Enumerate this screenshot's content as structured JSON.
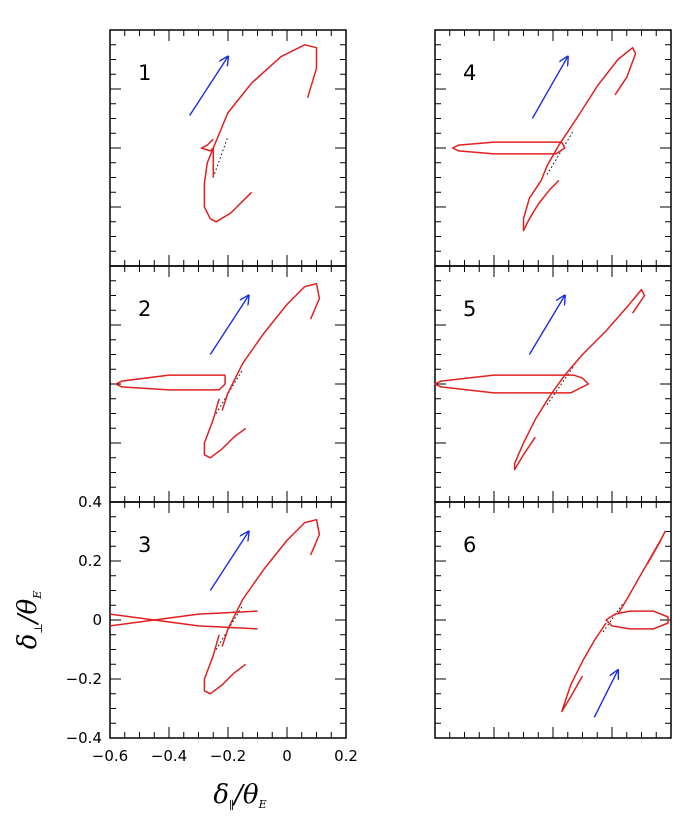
{
  "chart_data": {
    "type": "line",
    "title": "",
    "xlim": [
      -0.6,
      0.2
    ],
    "ylim": [
      -0.4,
      0.4
    ],
    "xticks": [
      "−0.6",
      "−0.4",
      "−0.2",
      "0",
      "0.2"
    ],
    "yticks": [
      "−0.4",
      "−0.2",
      "0",
      "0.2",
      "0.4"
    ],
    "xlabel": {
      "main": "δ",
      "sub": "∥",
      "divider": "/θ",
      "sub2": "E"
    },
    "ylabel": {
      "main": "δ",
      "sub": "⊥",
      "divider": "/θ",
      "sub2": "E"
    },
    "colors": {
      "curve": "#e02020",
      "arrow": "#1a2ee6",
      "chord": "#000000"
    },
    "panels": [
      {
        "label": "1",
        "arrow": [
          [
            -0.33,
            0.11
          ],
          [
            -0.2,
            0.31
          ]
        ],
        "curves": [
          [
            [
              -0.25,
              -0.1
            ],
            [
              -0.25,
              0.0
            ],
            [
              -0.2,
              0.12
            ],
            [
              -0.12,
              0.22
            ],
            [
              -0.02,
              0.31
            ],
            [
              0.06,
              0.35
            ],
            [
              0.1,
              0.34
            ],
            [
              0.1,
              0.27
            ],
            [
              0.07,
              0.17
            ]
          ],
          [
            [
              -0.25,
              0.0
            ],
            [
              -0.27,
              -0.05
            ],
            [
              -0.28,
              -0.12
            ],
            [
              -0.28,
              -0.2
            ],
            [
              -0.26,
              -0.24
            ],
            [
              -0.24,
              -0.25
            ],
            [
              -0.19,
              -0.22
            ],
            [
              -0.14,
              -0.17
            ],
            [
              -0.12,
              -0.15
            ]
          ],
          [
            [
              -0.25,
              0.03
            ],
            [
              -0.27,
              0.01
            ],
            [
              -0.29,
              0.0
            ],
            [
              -0.26,
              -0.01
            ],
            [
              -0.25,
              0.0
            ]
          ]
        ],
        "chord": [
          [
            -0.25,
            -0.1
          ],
          [
            -0.2,
            0.04
          ]
        ]
      },
      {
        "label": "4",
        "arrow": [
          [
            -0.27,
            0.1
          ],
          [
            -0.15,
            0.31
          ]
        ],
        "curves": [
          [
            [
              -0.22,
              -0.06
            ],
            [
              -0.18,
              0.01
            ],
            [
              -0.12,
              0.1
            ],
            [
              -0.05,
              0.21
            ],
            [
              0.02,
              0.3
            ],
            [
              0.07,
              0.34
            ],
            [
              0.08,
              0.32
            ],
            [
              0.05,
              0.24
            ],
            [
              0.01,
              0.18
            ]
          ],
          [
            [
              -0.22,
              -0.06
            ],
            [
              -0.24,
              -0.11
            ],
            [
              -0.28,
              -0.17
            ],
            [
              -0.3,
              -0.24
            ],
            [
              -0.3,
              -0.28
            ],
            [
              -0.28,
              -0.24
            ],
            [
              -0.25,
              -0.19
            ],
            [
              -0.21,
              -0.14
            ],
            [
              -0.18,
              -0.11
            ]
          ],
          [
            [
              -0.17,
              0.02
            ],
            [
              -0.4,
              0.02
            ],
            [
              -0.52,
              0.01
            ],
            [
              -0.54,
              0.0
            ],
            [
              -0.52,
              -0.01
            ],
            [
              -0.4,
              -0.02
            ],
            [
              -0.19,
              -0.02
            ],
            [
              -0.16,
              0.0
            ],
            [
              -0.17,
              0.02
            ]
          ]
        ],
        "chord": [
          [
            -0.22,
            -0.09
          ],
          [
            -0.13,
            0.06
          ]
        ]
      },
      {
        "label": "2",
        "arrow": [
          [
            -0.26,
            0.1
          ],
          [
            -0.13,
            0.3
          ]
        ],
        "curves": [
          [
            [
              -0.22,
              -0.09
            ],
            [
              -0.2,
              -0.03
            ],
            [
              -0.15,
              0.07
            ],
            [
              -0.08,
              0.17
            ],
            [
              0.0,
              0.27
            ],
            [
              0.06,
              0.33
            ],
            [
              0.1,
              0.34
            ],
            [
              0.11,
              0.29
            ],
            [
              0.08,
              0.22
            ]
          ],
          [
            [
              -0.23,
              -0.05
            ],
            [
              -0.25,
              -0.12
            ],
            [
              -0.28,
              -0.2
            ],
            [
              -0.28,
              -0.24
            ],
            [
              -0.26,
              -0.25
            ],
            [
              -0.22,
              -0.22
            ],
            [
              -0.18,
              -0.18
            ],
            [
              -0.14,
              -0.15
            ]
          ],
          [
            [
              -0.21,
              0.03
            ],
            [
              -0.4,
              0.03
            ],
            [
              -0.56,
              0.01
            ],
            [
              -0.58,
              0.0
            ],
            [
              -0.56,
              -0.01
            ],
            [
              -0.4,
              -0.02
            ],
            [
              -0.23,
              -0.02
            ],
            [
              -0.21,
              0.0
            ],
            [
              -0.21,
              0.03
            ]
          ]
        ],
        "chord": [
          [
            -0.24,
            -0.1
          ],
          [
            -0.15,
            0.05
          ]
        ]
      },
      {
        "label": "5",
        "arrow": [
          [
            -0.28,
            0.1
          ],
          [
            -0.16,
            0.3
          ]
        ],
        "curves": [
          [
            [
              -0.21,
              -0.04
            ],
            [
              -0.16,
              0.03
            ],
            [
              -0.1,
              0.1
            ],
            [
              -0.02,
              0.18
            ],
            [
              0.05,
              0.26
            ],
            [
              0.1,
              0.32
            ],
            [
              0.11,
              0.3
            ],
            [
              0.07,
              0.24
            ]
          ],
          [
            [
              -0.21,
              -0.04
            ],
            [
              -0.26,
              -0.12
            ],
            [
              -0.3,
              -0.2
            ],
            [
              -0.33,
              -0.27
            ],
            [
              -0.33,
              -0.29
            ],
            [
              -0.3,
              -0.24
            ],
            [
              -0.26,
              -0.18
            ]
          ],
          [
            [
              -0.13,
              0.03
            ],
            [
              -0.4,
              0.03
            ],
            [
              -0.58,
              0.01
            ],
            [
              -0.6,
              0.0
            ],
            [
              -0.58,
              -0.01
            ],
            [
              -0.4,
              -0.03
            ],
            [
              -0.14,
              -0.03
            ],
            [
              -0.08,
              0.0
            ],
            [
              -0.1,
              0.02
            ],
            [
              -0.13,
              0.03
            ]
          ]
        ],
        "chord": [
          [
            -0.22,
            -0.07
          ],
          [
            -0.13,
            0.06
          ]
        ]
      },
      {
        "label": "3",
        "arrow": [
          [
            -0.26,
            0.1
          ],
          [
            -0.13,
            0.3
          ]
        ],
        "curves": [
          [
            [
              -0.22,
              -0.09
            ],
            [
              -0.2,
              -0.03
            ],
            [
              -0.15,
              0.07
            ],
            [
              -0.08,
              0.17
            ],
            [
              0.0,
              0.27
            ],
            [
              0.06,
              0.33
            ],
            [
              0.1,
              0.34
            ],
            [
              0.11,
              0.29
            ],
            [
              0.08,
              0.22
            ]
          ],
          [
            [
              -0.23,
              -0.05
            ],
            [
              -0.25,
              -0.12
            ],
            [
              -0.28,
              -0.2
            ],
            [
              -0.28,
              -0.24
            ],
            [
              -0.26,
              -0.25
            ],
            [
              -0.22,
              -0.22
            ],
            [
              -0.18,
              -0.18
            ],
            [
              -0.14,
              -0.15
            ]
          ],
          [
            [
              -0.1,
              0.03
            ],
            [
              -0.3,
              0.02
            ],
            [
              -0.45,
              0.0
            ],
            [
              -0.6,
              -0.02
            ]
          ],
          [
            [
              -0.1,
              -0.03
            ],
            [
              -0.3,
              -0.02
            ],
            [
              -0.45,
              0.0
            ],
            [
              -0.6,
              0.02
            ]
          ]
        ],
        "chord": [
          [
            -0.24,
            -0.1
          ],
          [
            -0.15,
            0.05
          ]
        ]
      },
      {
        "label": "6",
        "arrow": [
          [
            -0.06,
            -0.33
          ],
          [
            0.02,
            -0.17
          ]
        ],
        "curves": [
          [
            [
              0.02,
              0.02
            ],
            [
              0.05,
              0.07
            ],
            [
              0.09,
              0.14
            ],
            [
              0.13,
              0.21
            ],
            [
              0.17,
              0.28
            ],
            [
              0.18,
              0.3
            ],
            [
              0.16,
              0.26
            ],
            [
              0.12,
              0.19
            ]
          ],
          [
            [
              -0.02,
              -0.01
            ],
            [
              -0.06,
              -0.07
            ],
            [
              -0.1,
              -0.14
            ],
            [
              -0.14,
              -0.22
            ],
            [
              -0.16,
              -0.28
            ],
            [
              -0.17,
              -0.31
            ],
            [
              -0.14,
              -0.26
            ],
            [
              -0.1,
              -0.19
            ]
          ],
          [
            [
              0.01,
              0.02
            ],
            [
              0.06,
              0.03
            ],
            [
              0.14,
              0.03
            ],
            [
              0.19,
              0.01
            ],
            [
              0.19,
              -0.01
            ],
            [
              0.14,
              -0.03
            ],
            [
              0.06,
              -0.03
            ],
            [
              0.0,
              -0.02
            ],
            [
              -0.02,
              0.0
            ],
            [
              0.01,
              0.02
            ]
          ]
        ],
        "chord": [
          [
            -0.03,
            -0.04
          ],
          [
            0.04,
            0.06
          ]
        ]
      }
    ]
  }
}
